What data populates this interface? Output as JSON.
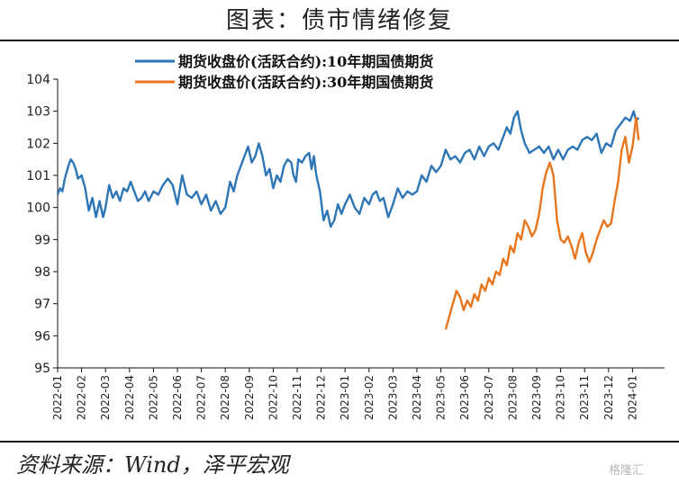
{
  "header": {
    "title": "图表：债市情绪修复"
  },
  "footer": {
    "source": "资料来源：Wind，泽平宏观",
    "watermark": "格隆汇"
  },
  "chart_data": {
    "type": "line",
    "title": "",
    "xlabel": "",
    "ylabel": "",
    "ylim": [
      95,
      104
    ],
    "y_ticks": [
      95,
      96,
      97,
      98,
      99,
      100,
      101,
      102,
      103,
      104
    ],
    "x_tick_labels": [
      "2022-01",
      "2022-02",
      "2022-03",
      "2022-04",
      "2022-05",
      "2022-06",
      "2022-07",
      "2022-08",
      "2022-09",
      "2022-10",
      "2022-11",
      "2022-12",
      "2023-01",
      "2023-02",
      "2023-03",
      "2023-04",
      "2023-05",
      "2023-06",
      "2023-07",
      "2023-08",
      "2023-09",
      "2023-10",
      "2023-11",
      "2023-12",
      "2024-01"
    ],
    "grid": false,
    "legend_position": "top",
    "series": [
      {
        "name": "期货收盘价(活跃合约):10年期国债期货",
        "color": "#2e75b6",
        "x": [
          0,
          0.1,
          0.2,
          0.3,
          0.45,
          0.55,
          0.65,
          0.75,
          0.85,
          1.0,
          1.15,
          1.3,
          1.45,
          1.6,
          1.75,
          1.9,
          2.0,
          2.15,
          2.3,
          2.45,
          2.6,
          2.75,
          2.9,
          3.05,
          3.2,
          3.35,
          3.5,
          3.65,
          3.8,
          4.0,
          4.2,
          4.4,
          4.6,
          4.8,
          5.0,
          5.2,
          5.4,
          5.6,
          5.8,
          6.0,
          6.2,
          6.4,
          6.6,
          6.8,
          7.0,
          7.2,
          7.35,
          7.5,
          7.65,
          7.8,
          7.95,
          8.1,
          8.25,
          8.4,
          8.55,
          8.7,
          8.85,
          9.0,
          9.15,
          9.3,
          9.45,
          9.6,
          9.75,
          9.85,
          9.95,
          10.05,
          10.2,
          10.35,
          10.5,
          10.6,
          10.7,
          10.8,
          10.95,
          11.1,
          11.25,
          11.4,
          11.55,
          11.7,
          11.85,
          12.0,
          12.2,
          12.4,
          12.6,
          12.8,
          13.0,
          13.15,
          13.3,
          13.45,
          13.6,
          13.8,
          14.0,
          14.2,
          14.4,
          14.6,
          14.8,
          15.0,
          15.2,
          15.4,
          15.6,
          15.8,
          16.0,
          16.2,
          16.4,
          16.6,
          16.8,
          17.0,
          17.2,
          17.4,
          17.6,
          17.8,
          18.0,
          18.2,
          18.4,
          18.6,
          18.75,
          18.9,
          19.05,
          19.2,
          19.35,
          19.5,
          19.7,
          19.9,
          20.1,
          20.3,
          20.5,
          20.7,
          20.9,
          21.1,
          21.3,
          21.5,
          21.7,
          21.9,
          22.1,
          22.3,
          22.5,
          22.7,
          22.9,
          23.1,
          23.3,
          23.5,
          23.7,
          23.9,
          24.05,
          24.15,
          24.25
        ],
        "values": [
          100.4,
          100.6,
          100.5,
          100.9,
          101.3,
          101.5,
          101.4,
          101.2,
          100.9,
          101.0,
          100.6,
          99.9,
          100.3,
          99.7,
          100.2,
          99.7,
          100.0,
          100.7,
          100.3,
          100.5,
          100.2,
          100.6,
          100.5,
          100.8,
          100.5,
          100.2,
          100.3,
          100.5,
          100.2,
          100.5,
          100.4,
          100.7,
          100.9,
          100.7,
          100.1,
          101.0,
          100.4,
          100.3,
          100.5,
          100.1,
          100.4,
          99.9,
          100.2,
          99.8,
          100.0,
          100.8,
          100.5,
          101.0,
          101.3,
          101.6,
          101.9,
          101.4,
          101.6,
          102.0,
          101.6,
          101.0,
          101.2,
          100.6,
          101.0,
          100.8,
          101.3,
          101.5,
          101.4,
          101.0,
          100.8,
          101.5,
          101.4,
          101.6,
          101.7,
          101.2,
          101.6,
          101.0,
          100.5,
          99.6,
          99.9,
          99.4,
          99.6,
          100.1,
          99.8,
          100.1,
          100.4,
          100.0,
          99.8,
          100.3,
          100.1,
          100.4,
          100.5,
          100.2,
          100.3,
          99.7,
          100.1,
          100.6,
          100.3,
          100.5,
          100.4,
          100.5,
          101.0,
          100.8,
          101.3,
          101.1,
          101.3,
          101.8,
          101.5,
          101.6,
          101.4,
          101.7,
          101.8,
          101.5,
          101.9,
          101.6,
          101.9,
          102.0,
          101.8,
          102.2,
          102.5,
          102.3,
          102.8,
          103.0,
          102.4,
          102.0,
          101.7,
          101.8,
          101.9,
          101.7,
          101.9,
          101.5,
          101.8,
          101.5,
          101.8,
          101.9,
          101.8,
          102.1,
          102.2,
          102.1,
          102.3,
          101.7,
          102.0,
          101.9,
          102.4,
          102.6,
          102.8,
          102.7,
          103.0,
          102.7,
          102.8
        ]
      },
      {
        "name": "期货收盘价(活跃合约):30年期国债期货",
        "color": "#e8761f",
        "x": [
          16.2,
          16.35,
          16.5,
          16.65,
          16.8,
          16.95,
          17.1,
          17.25,
          17.4,
          17.55,
          17.7,
          17.85,
          18.0,
          18.15,
          18.3,
          18.45,
          18.6,
          18.75,
          18.9,
          19.05,
          19.2,
          19.35,
          19.5,
          19.65,
          19.8,
          19.95,
          20.1,
          20.25,
          20.4,
          20.55,
          20.7,
          20.85,
          21.0,
          21.15,
          21.3,
          21.45,
          21.6,
          21.75,
          21.9,
          22.05,
          22.2,
          22.35,
          22.5,
          22.65,
          22.8,
          22.95,
          23.1,
          23.25,
          23.4,
          23.55,
          23.7,
          23.85,
          24.0,
          24.15,
          24.25
        ],
        "values": [
          96.2,
          96.6,
          97.0,
          97.4,
          97.2,
          96.8,
          97.1,
          96.9,
          97.3,
          97.1,
          97.6,
          97.4,
          97.8,
          97.6,
          98.0,
          97.9,
          98.4,
          98.2,
          98.8,
          98.6,
          99.2,
          99.0,
          99.6,
          99.4,
          99.1,
          99.3,
          99.8,
          100.6,
          101.1,
          101.4,
          101.0,
          99.6,
          99.0,
          98.9,
          99.1,
          98.8,
          98.4,
          98.9,
          99.2,
          98.6,
          98.3,
          98.6,
          99.0,
          99.3,
          99.6,
          99.4,
          99.5,
          100.2,
          100.8,
          101.8,
          102.2,
          101.4,
          101.9,
          102.8,
          102.1
        ]
      }
    ]
  }
}
